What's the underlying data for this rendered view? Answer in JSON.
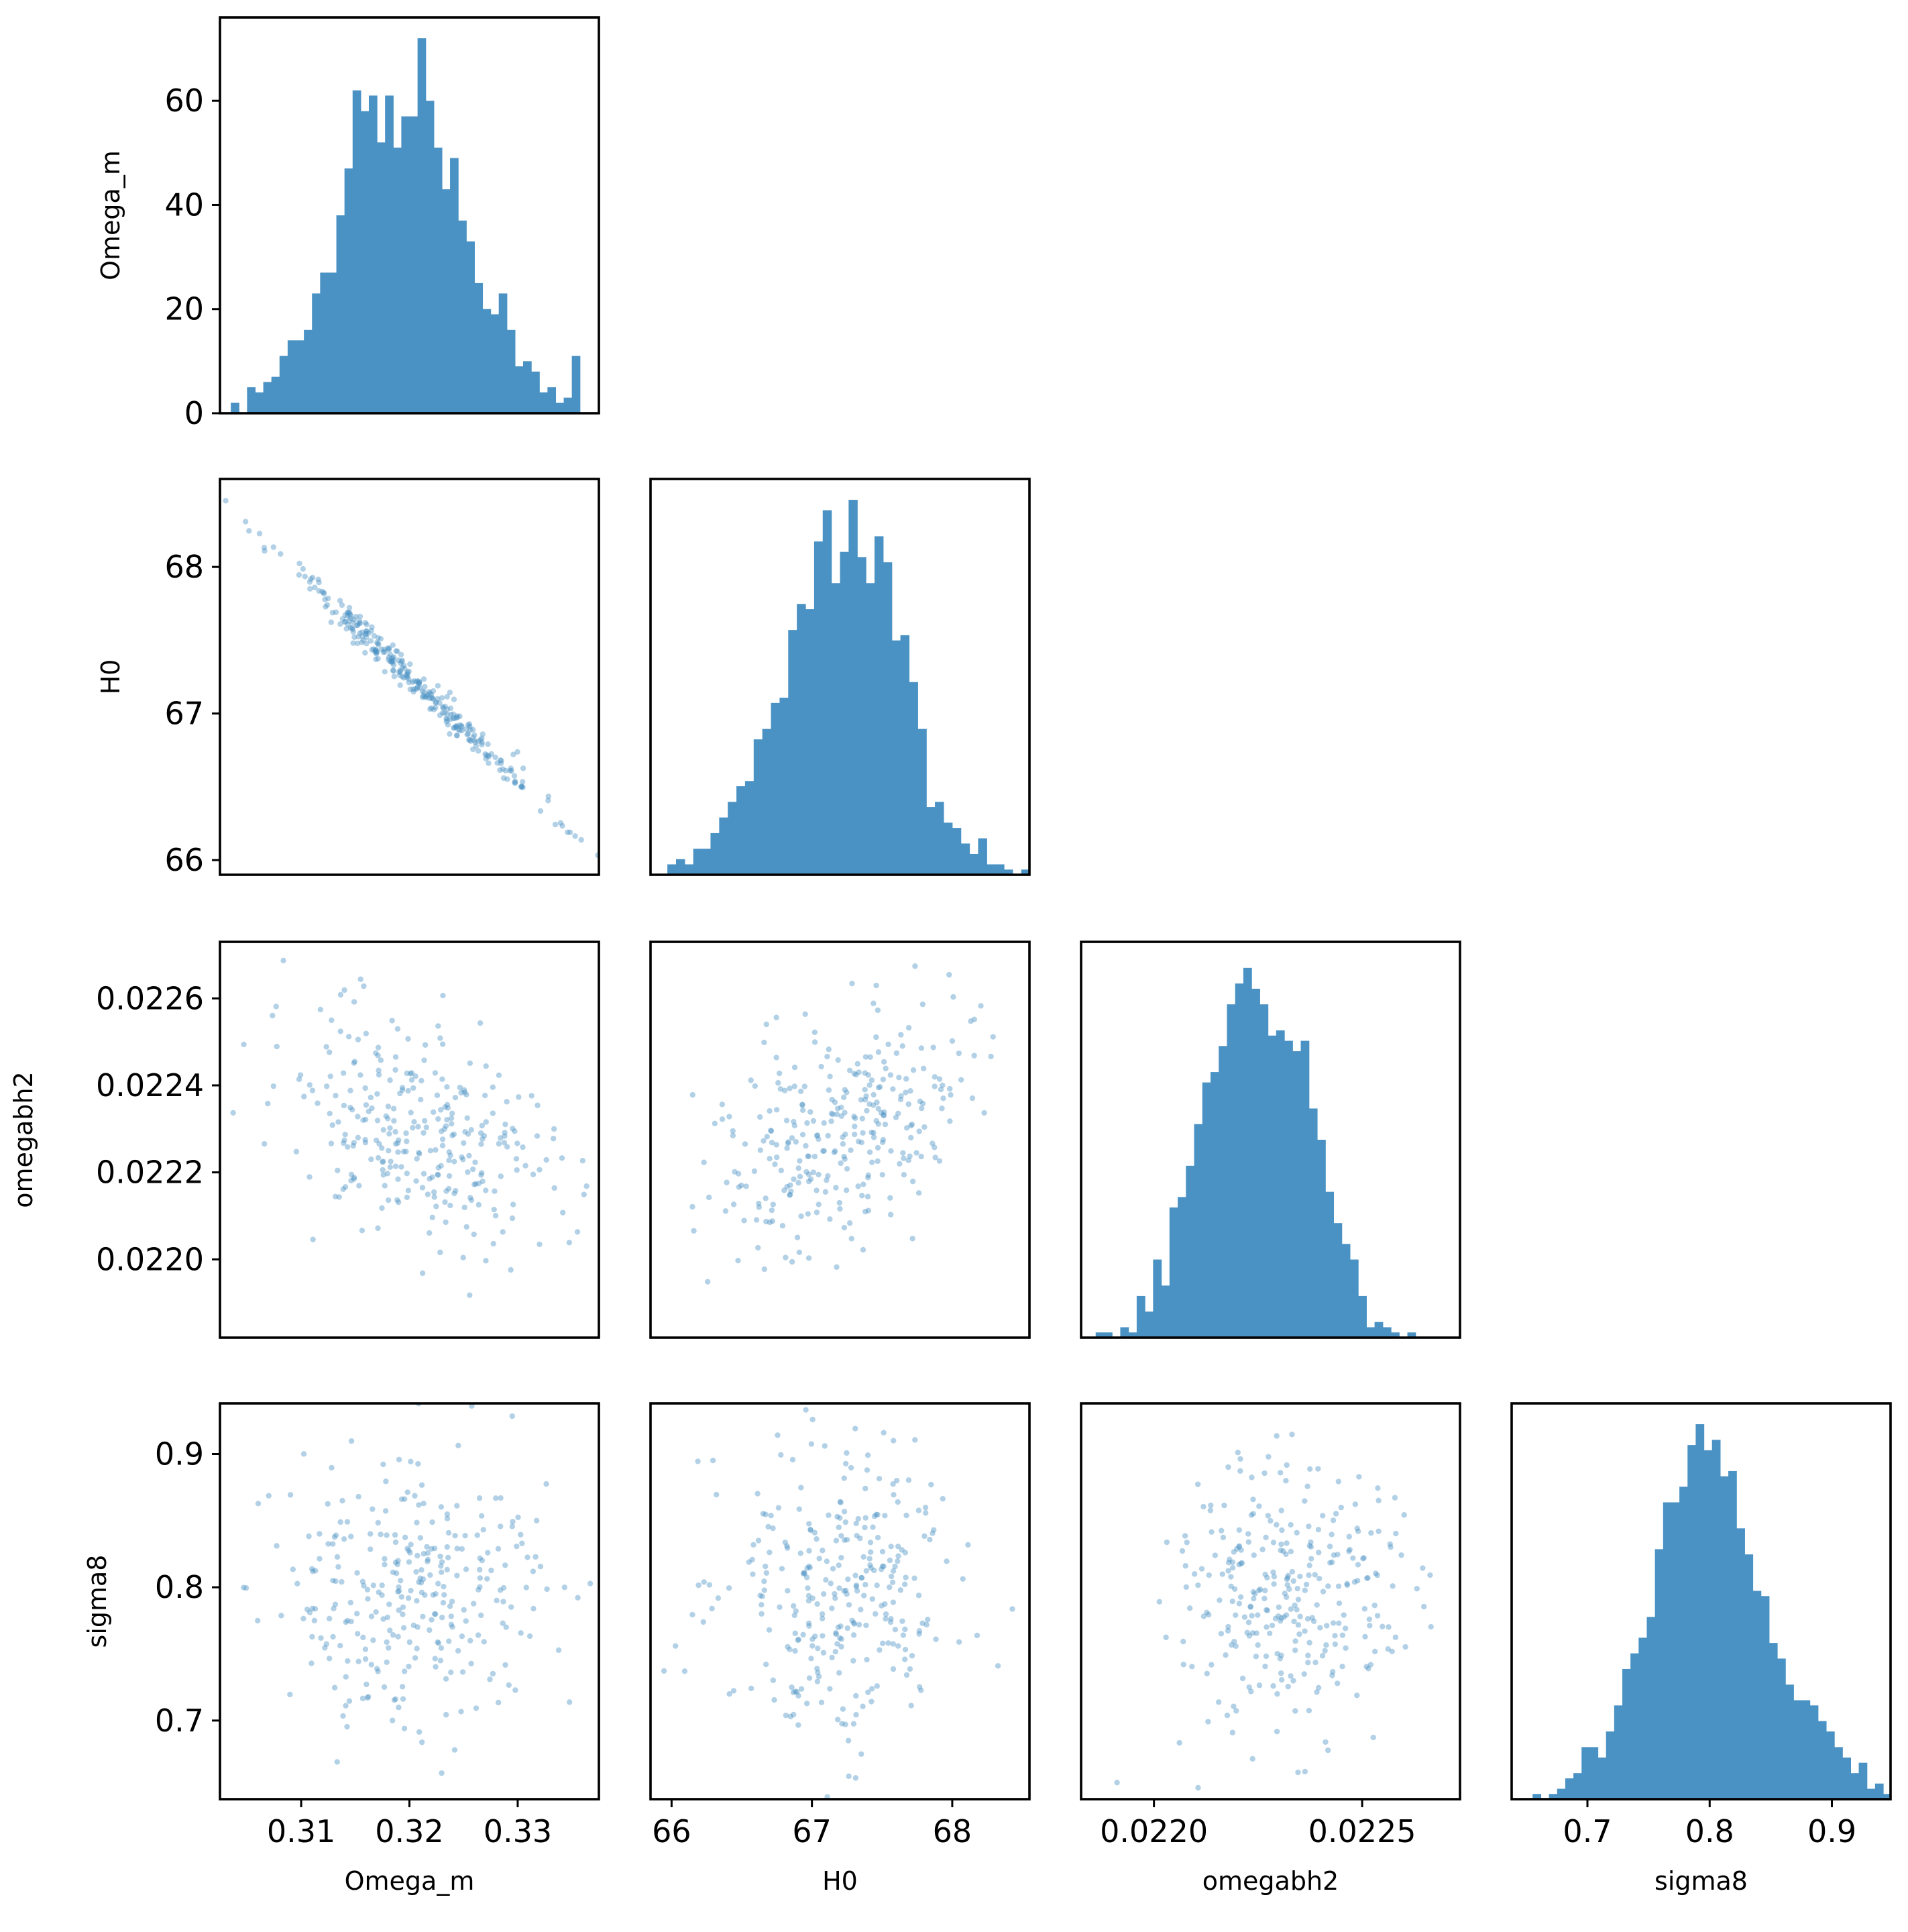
{
  "figure": {
    "type": "corner-plot",
    "background": "#ffffff",
    "mark_color": "#4b92c4",
    "frame_color": "#000000"
  },
  "parameters": [
    "Omega_m",
    "H0",
    "omegabh2",
    "sigma8"
  ],
  "chart_data": [
    {
      "type": "bar",
      "panel": "hist-Omega_m",
      "xlabel": "",
      "ylabel": "Omega_m",
      "xlim": [
        0.3025,
        0.3375
      ],
      "ylim": [
        0,
        76
      ],
      "yticks": [
        0,
        20,
        40,
        60
      ],
      "xticks": [],
      "bin_start": 0.3035,
      "bin_width": 0.00075,
      "counts": [
        2,
        0,
        5,
        4,
        6,
        7,
        11,
        14,
        14,
        16,
        23,
        27,
        27,
        38,
        47,
        62,
        58,
        61,
        52,
        61,
        51,
        57,
        57,
        72,
        60,
        51,
        43,
        49,
        37,
        33,
        25,
        20,
        19,
        23,
        16,
        9,
        10,
        8,
        4,
        5,
        2,
        3,
        11,
        0
      ]
    },
    {
      "type": "scatter",
      "panel": "scatter-H0-vs-Omega_m",
      "xlabel": "",
      "ylabel": "H0",
      "xlim": [
        0.3025,
        0.3375
      ],
      "ylim": [
        65.9,
        68.6
      ],
      "yticks": [
        66,
        67,
        68
      ],
      "xticks": [],
      "generator": {
        "n": 300,
        "seed": 11,
        "xmean": 0.3205,
        "xsd": 0.0062,
        "ymean": 67.21,
        "ysd": 0.445,
        "rho": -0.992
      }
    },
    {
      "type": "bar",
      "panel": "hist-H0",
      "xlabel": "",
      "ylabel": "",
      "xlim": [
        65.85,
        68.55
      ],
      "ylim": [
        0,
        76
      ],
      "yticks": [],
      "xticks": [],
      "bin_start": 65.97,
      "bin_width": 0.0615,
      "counts": [
        2,
        3,
        2,
        5,
        5,
        8,
        11,
        14,
        17,
        18,
        26,
        28,
        33,
        34,
        47,
        52,
        51,
        64,
        70,
        56,
        62,
        72,
        61,
        56,
        65,
        60,
        45,
        46,
        37,
        28,
        13,
        14,
        10,
        9,
        6,
        4,
        7,
        2,
        2,
        1,
        0,
        1,
        0
      ]
    },
    {
      "type": "scatter",
      "panel": "scatter-omegabh2-vs-Omega_m",
      "xlabel": "",
      "ylabel": "omegabh2",
      "xlim": [
        0.3025,
        0.3375
      ],
      "ylim": [
        0.02182,
        0.02273
      ],
      "yticks": [
        0.022,
        0.0222,
        0.0224,
        0.0226
      ],
      "ytick_labels": [
        "0.0220",
        "0.0222",
        "0.0224",
        "0.0226"
      ],
      "xticks": [],
      "generator": {
        "n": 300,
        "seed": 23,
        "xmean": 0.3205,
        "xsd": 0.0062,
        "ymean": 0.022305,
        "ysd": 0.000135,
        "rho": -0.45
      }
    },
    {
      "type": "scatter",
      "panel": "scatter-omegabh2-vs-H0",
      "xlabel": "",
      "ylabel": "",
      "xlim": [
        65.85,
        68.55
      ],
      "ylim": [
        0.02182,
        0.02273
      ],
      "yticks": [],
      "xticks": [],
      "generator": {
        "n": 300,
        "seed": 37,
        "xmean": 67.21,
        "xsd": 0.445,
        "ymean": 0.022305,
        "ysd": 0.000135,
        "rho": 0.45
      }
    },
    {
      "type": "bar",
      "panel": "hist-omegabh2",
      "xlabel": "",
      "ylabel": "",
      "xlim": [
        0.021825,
        0.022735
      ],
      "ylim": [
        0,
        76
      ],
      "yticks": [],
      "xticks": [],
      "bin_start": 0.02186,
      "bin_width": 1.97e-05,
      "counts": [
        1,
        1,
        0,
        2,
        1,
        8,
        5,
        15,
        10,
        25,
        27,
        33,
        41,
        49,
        51,
        56,
        64,
        68,
        71,
        67,
        64,
        58,
        59,
        57,
        55,
        57,
        44,
        38,
        28,
        22,
        18,
        15,
        8,
        2,
        3,
        2,
        1,
        0,
        1,
        0,
        0
      ]
    },
    {
      "type": "scatter",
      "panel": "scatter-sigma8-vs-Omega_m",
      "xlabel": "Omega_m",
      "ylabel": "sigma8",
      "xlim": [
        0.3025,
        0.3375
      ],
      "ylim": [
        0.641,
        0.938
      ],
      "yticks": [
        0.7,
        0.8,
        0.9
      ],
      "ytick_labels": [
        "0.7",
        "0.8",
        "0.9"
      ],
      "xticks": [
        0.31,
        0.32,
        0.33
      ],
      "xtick_labels": [
        "0.31",
        "0.32",
        "0.33"
      ],
      "generator": {
        "n": 300,
        "seed": 41,
        "xmean": 0.3205,
        "xsd": 0.0062,
        "ymean": 0.797,
        "ysd": 0.05,
        "rho": 0.05
      }
    },
    {
      "type": "scatter",
      "panel": "scatter-sigma8-vs-H0",
      "xlabel": "H0",
      "ylabel": "",
      "xlim": [
        65.85,
        68.55
      ],
      "ylim": [
        0.641,
        0.938
      ],
      "yticks": [],
      "xticks": [
        66,
        67,
        68
      ],
      "xtick_labels": [
        "66",
        "67",
        "68"
      ],
      "generator": {
        "n": 300,
        "seed": 53,
        "xmean": 67.21,
        "xsd": 0.445,
        "ymean": 0.797,
        "ysd": 0.05,
        "rho": -0.05
      }
    },
    {
      "type": "scatter",
      "panel": "scatter-sigma8-vs-omegabh2",
      "xlabel": "omegabh2",
      "ylabel": "",
      "xlim": [
        0.021825,
        0.022735
      ],
      "ylim": [
        0.641,
        0.938
      ],
      "yticks": [],
      "xticks": [
        0.022,
        0.0225
      ],
      "xtick_labels": [
        "0.0220",
        "0.0225"
      ],
      "generator": {
        "n": 300,
        "seed": 67,
        "xmean": 0.022305,
        "xsd": 0.000135,
        "ymean": 0.797,
        "ysd": 0.05,
        "rho": 0.0
      }
    },
    {
      "type": "bar",
      "panel": "hist-sigma8",
      "xlabel": "sigma8",
      "ylabel": "",
      "xlim": [
        0.638,
        0.948
      ],
      "ylim": [
        0,
        76
      ],
      "yticks": [],
      "xticks": [
        0.7,
        0.8,
        0.9
      ],
      "xtick_labels": [
        "0.7",
        "0.8",
        "0.9"
      ],
      "bin_start": 0.6485,
      "bin_width": 0.00667,
      "counts": [
        0,
        1,
        0,
        1,
        2,
        4,
        5,
        10,
        10,
        8,
        13,
        18,
        25,
        28,
        31,
        35,
        48,
        57,
        57,
        60,
        68,
        72,
        67,
        69,
        62,
        63,
        52,
        47,
        40,
        39,
        30,
        27,
        22,
        19,
        19,
        18,
        15,
        13,
        10,
        8,
        5,
        7,
        2,
        3,
        1
      ]
    }
  ]
}
